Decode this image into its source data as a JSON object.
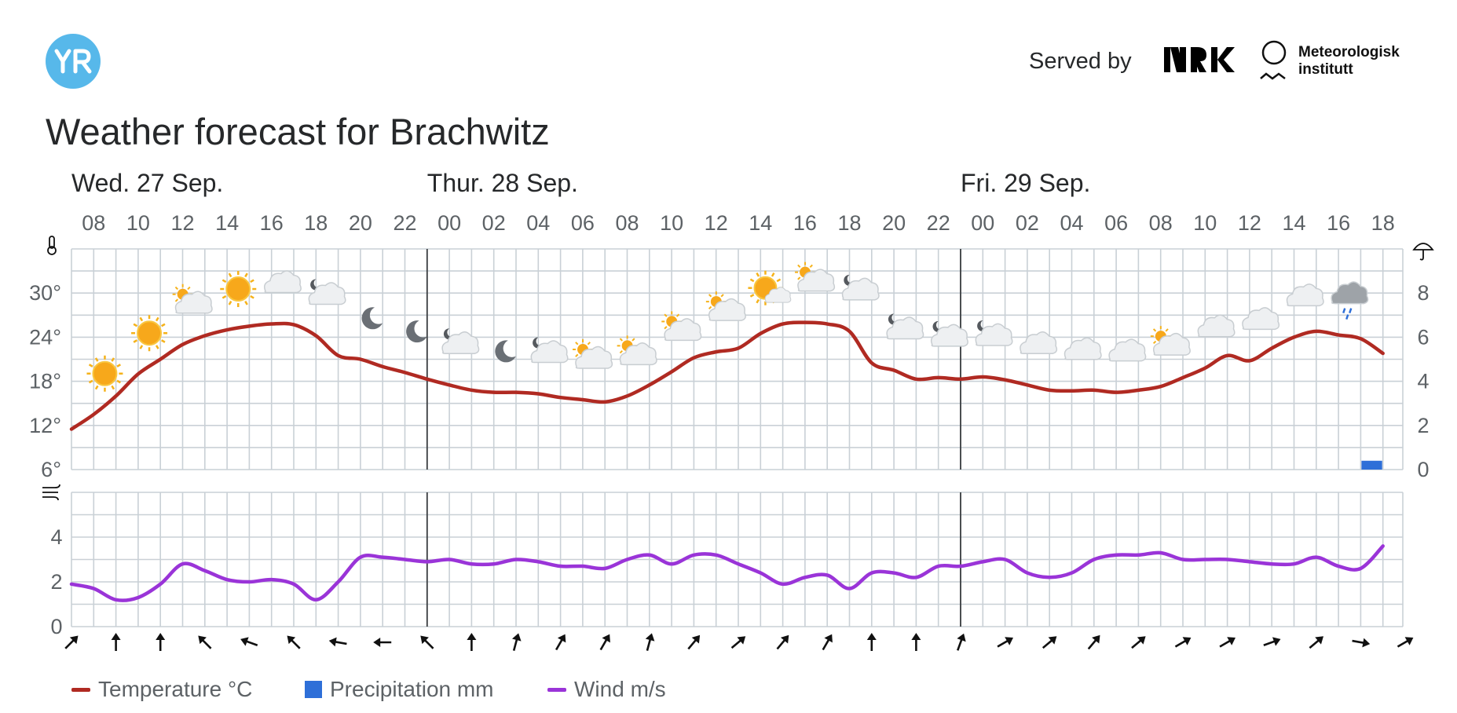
{
  "header": {
    "logo_text": "YR",
    "served_by": "Served by",
    "nrk_text": "NRK",
    "met_line1": "Meteorologisk",
    "met_line2": "institutt"
  },
  "title": "Weather forecast for Brachwitz",
  "colors": {
    "temperature": "#b02a22",
    "precipitation": "#2e6fd8",
    "wind": "#9a34d8",
    "grid": "#c9d0d6",
    "day_separator": "#3a3d40",
    "yr_blue": "#57b8ea"
  },
  "chart_data": {
    "type": "line",
    "days": [
      "Wed. 27 Sep.",
      "Thur. 28 Sep.",
      "Fri. 29 Sep."
    ],
    "x": [
      "08",
      "09",
      "10",
      "11",
      "12",
      "13",
      "14",
      "15",
      "16",
      "17",
      "18",
      "19",
      "20",
      "21",
      "22",
      "23",
      "00",
      "01",
      "02",
      "03",
      "04",
      "05",
      "06",
      "07",
      "08",
      "09",
      "10",
      "11",
      "12",
      "13",
      "14",
      "15",
      "16",
      "17",
      "18",
      "19",
      "20",
      "21",
      "22",
      "23",
      "00",
      "01",
      "02",
      "03",
      "04",
      "05",
      "06",
      "07",
      "08",
      "09",
      "10",
      "11",
      "12",
      "13",
      "14",
      "15",
      "16",
      "17",
      "18",
      "19"
    ],
    "hour_tick_labels": [
      "08",
      "10",
      "12",
      "14",
      "16",
      "18",
      "20",
      "22",
      "00",
      "02",
      "04",
      "06",
      "08",
      "10",
      "12",
      "14",
      "16",
      "18",
      "20",
      "22",
      "00",
      "02",
      "04",
      "06",
      "08",
      "10",
      "12",
      "14",
      "16",
      "18"
    ],
    "temperature_axis": {
      "label": "°C",
      "ylim": [
        6,
        36
      ],
      "ticks": [
        "6°",
        "12°",
        "18°",
        "24°",
        "30°"
      ]
    },
    "precipitation_axis": {
      "label": "mm",
      "ylim": [
        0,
        10
      ],
      "ticks": [
        "0",
        "2",
        "4",
        "6",
        "8"
      ]
    },
    "wind_axis": {
      "label": "m/s",
      "ylim": [
        0,
        6
      ],
      "ticks": [
        "0",
        "2",
        "4"
      ]
    },
    "series": [
      {
        "name": "Temperature °C",
        "axis": "temperature",
        "values": [
          11.5,
          13.5,
          16,
          19,
          21,
          23,
          24.2,
          25,
          25.5,
          25.8,
          25.7,
          24.2,
          21.5,
          21,
          20,
          19.2,
          18.3,
          17.5,
          16.8,
          16.5,
          16.5,
          16.3,
          15.8,
          15.5,
          15.2,
          16,
          17.5,
          19.3,
          21.2,
          22,
          22.5,
          24.5,
          25.8,
          26,
          25.8,
          24.8,
          20.5,
          19.5,
          18.3,
          18.5,
          18.3,
          18.6,
          18.2,
          17.5,
          16.8,
          16.7,
          16.8,
          16.5,
          16.8,
          17.3,
          18.5,
          19.8,
          21.5,
          20.8,
          22.5,
          24,
          24.8,
          24.3,
          23.8,
          21.8
        ]
      },
      {
        "name": "Precipitation mm",
        "axis": "precipitation",
        "values": [
          0,
          0,
          0,
          0,
          0,
          0,
          0,
          0,
          0,
          0,
          0,
          0,
          0,
          0,
          0,
          0,
          0,
          0,
          0,
          0,
          0,
          0,
          0,
          0,
          0,
          0,
          0,
          0,
          0,
          0,
          0,
          0,
          0,
          0,
          0,
          0,
          0,
          0,
          0,
          0,
          0,
          0,
          0,
          0,
          0,
          0,
          0,
          0,
          0,
          0,
          0,
          0,
          0,
          0,
          0,
          0,
          0,
          0,
          0.4,
          0
        ]
      },
      {
        "name": "Wind m/s",
        "axis": "wind",
        "values": [
          1.9,
          1.7,
          1.2,
          1.3,
          1.9,
          2.8,
          2.5,
          2.1,
          2,
          2.1,
          1.9,
          1.2,
          2,
          3.1,
          3.1,
          3,
          2.9,
          3,
          2.8,
          2.8,
          3,
          2.9,
          2.7,
          2.7,
          2.6,
          3,
          3.2,
          2.8,
          3.2,
          3.2,
          2.8,
          2.4,
          1.9,
          2.2,
          2.3,
          1.7,
          2.4,
          2.4,
          2.2,
          2.7,
          2.7,
          2.9,
          3,
          2.4,
          2.2,
          2.4,
          3,
          3.2,
          3.2,
          3.3,
          3,
          3,
          3,
          2.9,
          2.8,
          2.8,
          3.1,
          2.7,
          2.6,
          3.6
        ]
      }
    ],
    "symbols": [
      {
        "x": 1,
        "icon": "clear-sky-day-icon"
      },
      {
        "x": 3,
        "icon": "clear-sky-day-icon"
      },
      {
        "x": 5,
        "icon": "partly-cloudy-day-icon"
      },
      {
        "x": 7,
        "icon": "clear-sky-day-icon"
      },
      {
        "x": 9,
        "icon": "cloudy-icon"
      },
      {
        "x": 11,
        "icon": "partly-cloudy-night-icon"
      },
      {
        "x": 13,
        "icon": "clear-sky-night-icon"
      },
      {
        "x": 15,
        "icon": "clear-sky-night-icon"
      },
      {
        "x": 17,
        "icon": "partly-cloudy-night-icon"
      },
      {
        "x": 19,
        "icon": "clear-sky-night-icon"
      },
      {
        "x": 21,
        "icon": "partly-cloudy-night-icon"
      },
      {
        "x": 23,
        "icon": "partly-cloudy-day-icon"
      },
      {
        "x": 25,
        "icon": "partly-cloudy-day-icon"
      },
      {
        "x": 27,
        "icon": "partly-cloudy-day-icon"
      },
      {
        "x": 29,
        "icon": "partly-cloudy-day-icon"
      },
      {
        "x": 31,
        "icon": "fair-day-icon"
      },
      {
        "x": 33,
        "icon": "partly-cloudy-day-icon"
      },
      {
        "x": 35,
        "icon": "partly-cloudy-night-icon"
      },
      {
        "x": 37,
        "icon": "partly-cloudy-night-icon"
      },
      {
        "x": 39,
        "icon": "partly-cloudy-night-icon"
      },
      {
        "x": 41,
        "icon": "partly-cloudy-night-icon"
      },
      {
        "x": 43,
        "icon": "cloudy-icon"
      },
      {
        "x": 45,
        "icon": "cloudy-icon"
      },
      {
        "x": 47,
        "icon": "cloudy-icon"
      },
      {
        "x": 49,
        "icon": "partly-cloudy-day-icon"
      },
      {
        "x": 51,
        "icon": "cloudy-icon"
      },
      {
        "x": 53,
        "icon": "cloudy-icon"
      },
      {
        "x": 55,
        "icon": "cloudy-icon"
      },
      {
        "x": 57,
        "icon": "light-rain-icon"
      }
    ],
    "wind_direction_arrows_deg": [
      45,
      0,
      0,
      -45,
      -70,
      -45,
      -80,
      -90,
      -45,
      0,
      15,
      30,
      30,
      15,
      40,
      50,
      40,
      30,
      0,
      0,
      20,
      60,
      50,
      40,
      50,
      60,
      60,
      70,
      50,
      100,
      60
    ],
    "legend": [
      "Temperature °C",
      "Precipitation mm",
      "Wind m/s"
    ],
    "grid": true
  }
}
